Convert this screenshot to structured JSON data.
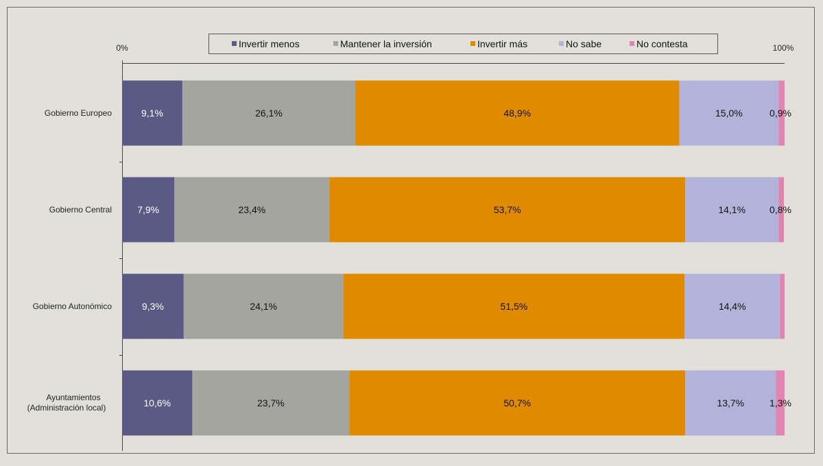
{
  "chart_data": {
    "type": "bar",
    "orientation": "horizontal",
    "stacked": "percent",
    "xlim": [
      0,
      100
    ],
    "tick_labels": [
      "0%",
      "100%"
    ],
    "legend_position": "top",
    "grid": false,
    "categories": [
      "Gobierno Europeo",
      "Gobierno Central",
      "Gobierno Autonómico",
      "Ayuntamientos|(Administración local)"
    ],
    "series": [
      {
        "name": "Invertir menos",
        "color": "#5a5a85",
        "values": [
          9.1,
          7.9,
          9.3,
          10.6
        ],
        "labels": [
          "9,1%",
          "7,9%",
          "9,3%",
          "10,6%"
        ]
      },
      {
        "name": "Mantener la inversión",
        "color": "#a5a5a0",
        "values": [
          26.1,
          23.4,
          24.1,
          23.7
        ],
        "labels": [
          "26,1%",
          "23,4%",
          "24,1%",
          "23,7%"
        ]
      },
      {
        "name": "Invertir más",
        "color": "#e08a00",
        "values": [
          48.9,
          53.7,
          51.5,
          50.7
        ],
        "labels": [
          "48,9%",
          "53,7%",
          "51,5%",
          "50,7%"
        ]
      },
      {
        "name": "No sabe",
        "color": "#b3b3da",
        "values": [
          15.0,
          14.1,
          14.4,
          13.7
        ],
        "labels": [
          "15,0%",
          "14,1%",
          "14,4%",
          "13,7%"
        ]
      },
      {
        "name": "No contesta",
        "color": "#e085b0",
        "values": [
          0.9,
          0.8,
          0.7,
          1.3
        ],
        "labels": [
          "0,9%",
          "0,8%",
          "",
          "1,3%"
        ]
      }
    ]
  }
}
